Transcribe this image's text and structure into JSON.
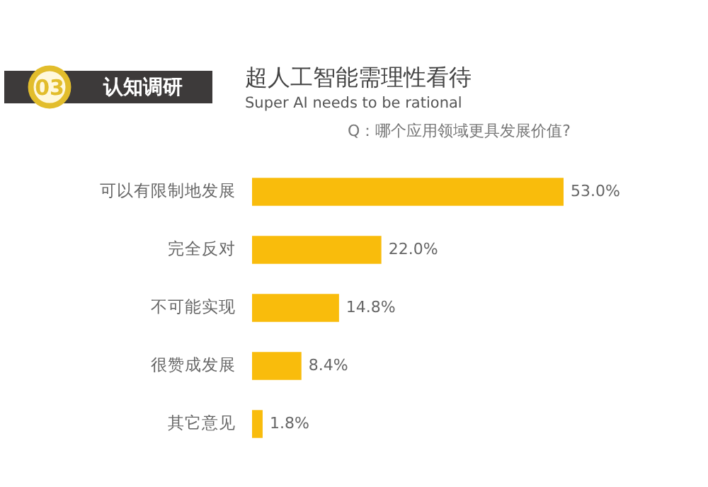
{
  "chart_data": {
    "type": "bar",
    "orientation": "horizontal",
    "title": "超人工智能需理性看待",
    "subtitle": "Super AI needs to be rational",
    "annotations": [
      "03",
      "认知调研",
      "Q：哪个应用领域更具发展价值?"
    ],
    "categories": [
      "可以有限制地发展",
      "完全反对",
      "不可能实现",
      "很赞成发展",
      "其它意见"
    ],
    "values": [
      53.0,
      22.0,
      14.8,
      8.4,
      1.8
    ],
    "value_labels": [
      "53.0%",
      "22.0%",
      "14.8%",
      "8.4%",
      "1.8%"
    ],
    "color": "#f9bc0c",
    "grid": false
  }
}
